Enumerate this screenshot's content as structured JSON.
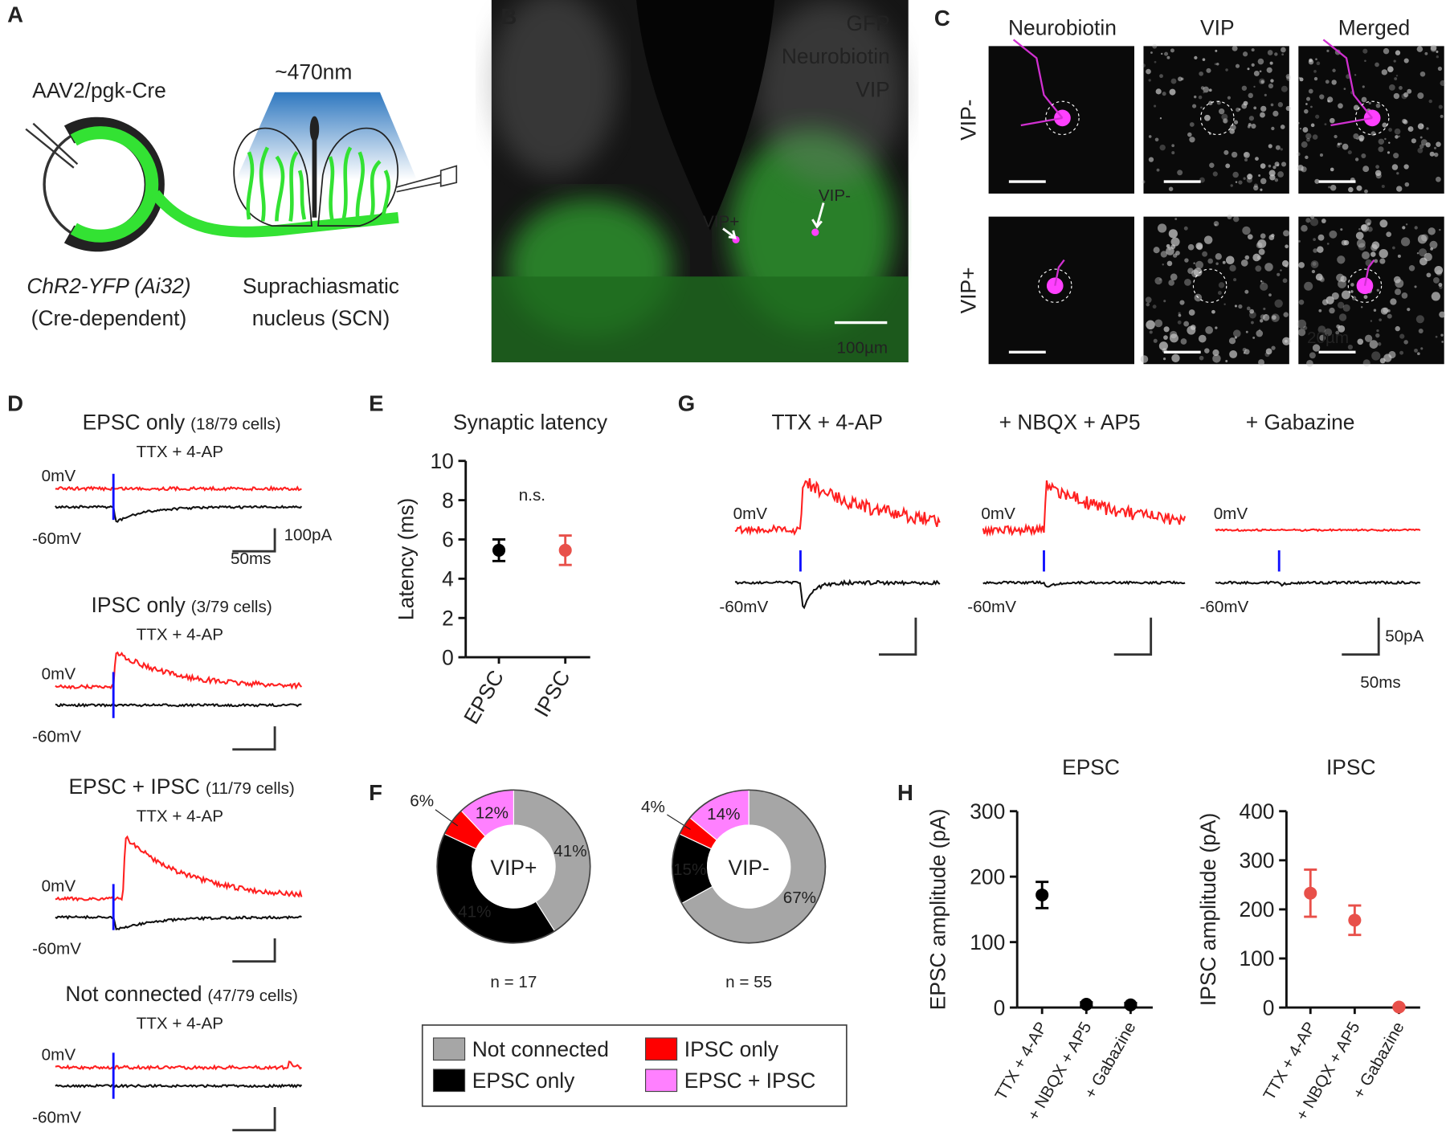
{
  "panel_labels": [
    "A",
    "B",
    "C",
    "D",
    "E",
    "F",
    "G",
    "H"
  ],
  "panel_a": {
    "virus": "AAV2/pgk-Cre",
    "light": "~470nm",
    "mouse_line": "ChR2-YFP (Ai32)",
    "mouse_note": "(Cre-dependent)",
    "target_1": "Suprachiasmatic",
    "target_2": "nucleus (SCN)"
  },
  "panel_b": {
    "legend": [
      "GFP",
      "Neurobiotin",
      "VIP"
    ],
    "arrows": [
      "VIP+",
      "VIP-"
    ],
    "scale": "100µm"
  },
  "panel_c": {
    "columns": [
      "Neurobiotin",
      "VIP",
      "Merged"
    ],
    "rows": [
      "VIP-",
      "VIP+"
    ],
    "scale": "20µm"
  },
  "panel_d": {
    "sections": [
      {
        "title": "EPSC only",
        "count": "(18/79 cells)",
        "condition": "TTX + 4-AP",
        "upper": "0mV",
        "lower": "-60mV"
      },
      {
        "title": "IPSC only",
        "count": "(3/79 cells)",
        "condition": "TTX + 4-AP",
        "upper": "0mV",
        "lower": "-60mV"
      },
      {
        "title": "EPSC + IPSC",
        "count": "(11/79 cells)",
        "condition": "TTX + 4-AP",
        "upper": "0mV",
        "lower": "-60mV"
      },
      {
        "title": "Not connected",
        "count": "(47/79 cells)",
        "condition": "TTX + 4-AP",
        "upper": "0mV",
        "lower": "-60mV"
      }
    ],
    "scale_y": "100pA",
    "scale_x": "50ms"
  },
  "panel_g": {
    "conditions": [
      "TTX + 4-AP",
      "+ NBQX + AP5",
      "+ Gabazine"
    ],
    "upper": "0mV",
    "lower": "-60mV",
    "scale_y": "50pA",
    "scale_x": "50ms"
  },
  "chart_data": [
    {
      "type": "errorbar",
      "title": "Synaptic latency",
      "y_label": "Latency (ms)",
      "categories": [
        "EPSC",
        "IPSC"
      ],
      "values": [
        5.45,
        5.45
      ],
      "errors": [
        0.55,
        0.75
      ],
      "colors": [
        "#000000",
        "#e8504a"
      ],
      "ylim": [
        0,
        10
      ],
      "yticks": [
        0,
        2,
        4,
        6,
        8,
        10
      ],
      "annotation": "n.s."
    },
    {
      "type": "donut",
      "center_label": "VIP+",
      "note": "n = 17",
      "categories": [
        "Not connected",
        "EPSC only",
        "IPSC only",
        "EPSC + IPSC"
      ],
      "values": [
        41,
        41,
        6,
        12
      ],
      "value_labels": [
        "41%",
        "41%",
        "6%",
        "12%"
      ],
      "colors": [
        "#a6a6a6",
        "#000000",
        "#ff0000",
        "#ff80ff"
      ]
    },
    {
      "type": "donut",
      "center_label": "VIP-",
      "note": "n = 55",
      "categories": [
        "Not connected",
        "EPSC only",
        "IPSC only",
        "EPSC + IPSC"
      ],
      "values": [
        67,
        15,
        4,
        14
      ],
      "value_labels": [
        "67%",
        "15%",
        "4%",
        "14%"
      ],
      "colors": [
        "#a6a6a6",
        "#000000",
        "#ff0000",
        "#ff80ff"
      ]
    },
    {
      "type": "errorbar",
      "title": "EPSC",
      "y_label": "EPSC amplitude (pA)",
      "categories": [
        "TTX + 4-AP",
        "+ NBQX + AP5",
        "+ Gabazine"
      ],
      "values": [
        172,
        5,
        4
      ],
      "errors": [
        20,
        3,
        3
      ],
      "color": "#000000",
      "ylim": [
        0,
        300
      ],
      "yticks": [
        0,
        100,
        200,
        300
      ]
    },
    {
      "type": "errorbar",
      "title": "IPSC",
      "y_label": "IPSC amplitude (pA)",
      "categories": [
        "TTX + 4-AP",
        "+ NBQX + AP5",
        "+ Gabazine"
      ],
      "values": [
        233,
        178,
        1
      ],
      "errors": [
        48,
        30,
        2
      ],
      "color": "#e8504a",
      "ylim": [
        0,
        400
      ],
      "yticks": [
        0,
        100,
        200,
        300,
        400
      ]
    }
  ]
}
